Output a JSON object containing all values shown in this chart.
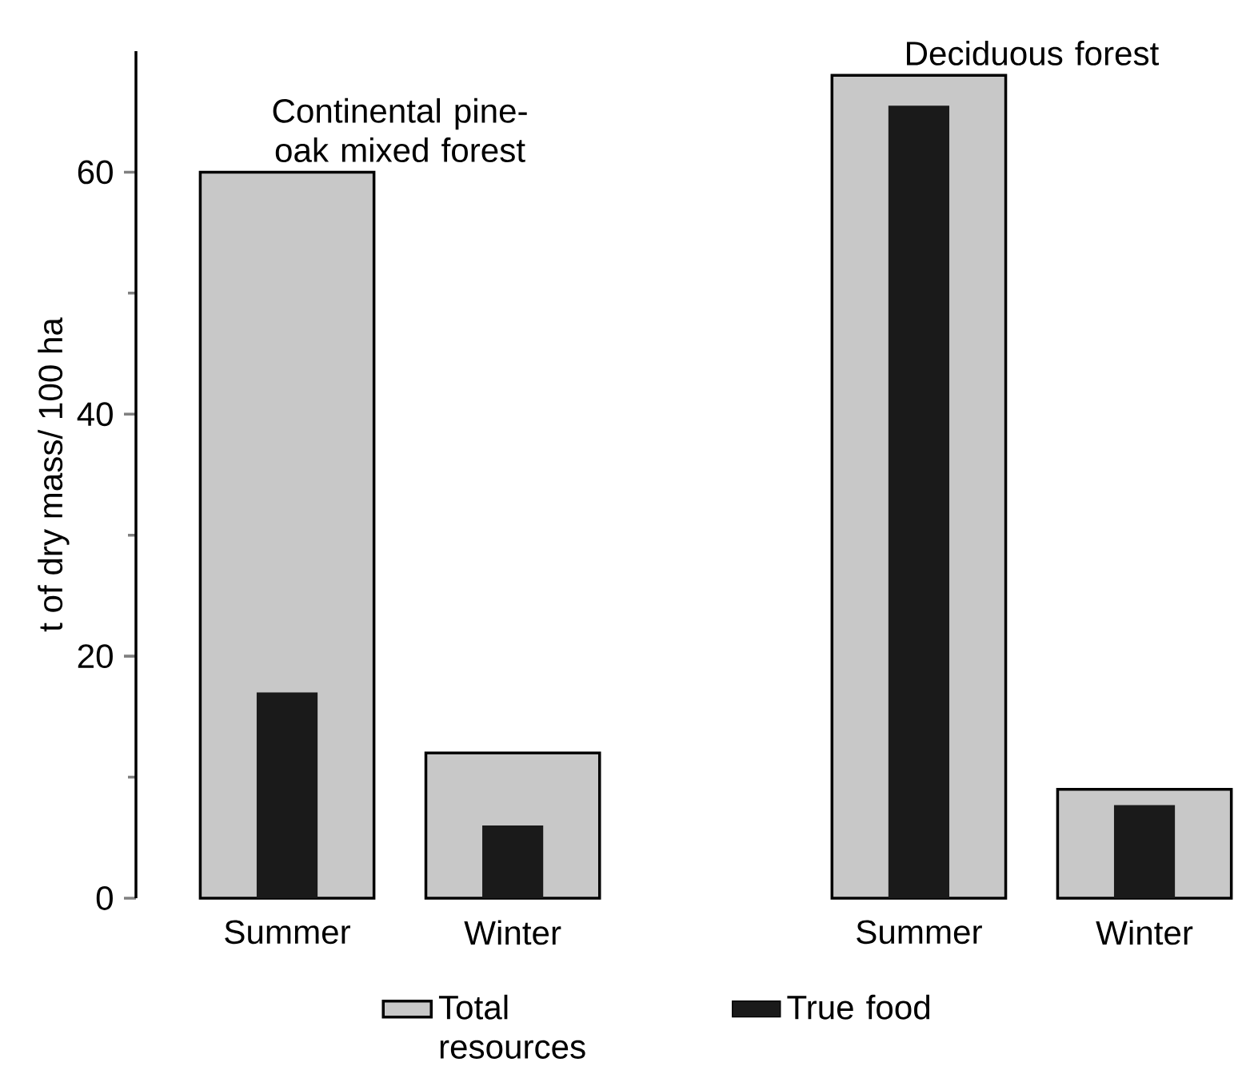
{
  "chart_data": {
    "type": "bar",
    "ylabel": "t of dry mass/ 100 ha",
    "categories": [
      "Summer",
      "Winter",
      "Summer",
      "Winter"
    ],
    "annotations": [
      "Continental pine-oak mixed forest",
      "Deciduous forest"
    ],
    "series": [
      {
        "name": "Total resources",
        "color": "#c8c8c8",
        "values": [
          60,
          12,
          68,
          9
        ]
      },
      {
        "name": "True food",
        "color": "#1a1a1a",
        "values": [
          17,
          6,
          65.5,
          7.7
        ]
      }
    ],
    "ylim": [
      0,
      70
    ],
    "yticks": [
      0,
      20,
      40,
      60
    ],
    "legend": "bottom",
    "grid": false
  }
}
